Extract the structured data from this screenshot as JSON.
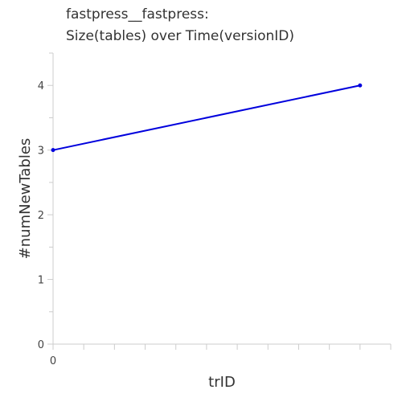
{
  "chart_data": {
    "type": "line",
    "title": [
      "fastpress__fastpress:",
      "Size(tables) over Time(versionID)"
    ],
    "xlabel": "trID",
    "ylabel": "#numNewTables",
    "x": [
      0,
      5
    ],
    "x_tick_labels": [
      "0"
    ],
    "xlim": [
      0,
      5.5
    ],
    "ylim": [
      0,
      4.5
    ],
    "y_ticks": [
      0,
      1,
      2,
      3,
      4
    ],
    "grid": false,
    "series": [
      {
        "values": [
          3,
          4
        ],
        "color": "#0000dd"
      }
    ]
  }
}
